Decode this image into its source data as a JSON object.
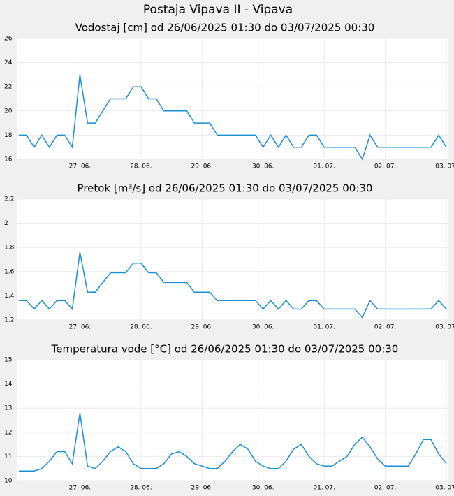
{
  "title": "Postaja Vipava II - Vipava",
  "chart_data": [
    {
      "type": "line",
      "title": "Vodostaj [cm] od 26/06/2025 01:30 do 03/07/2025 00:30",
      "categories": [
        null,
        null,
        null,
        null,
        null,
        null,
        null,
        null,
        "27. 06.",
        null,
        null,
        null,
        null,
        null,
        null,
        null,
        "28. 06.",
        null,
        null,
        null,
        null,
        null,
        null,
        null,
        "29. 06.",
        null,
        null,
        null,
        null,
        null,
        null,
        null,
        "30. 06.",
        null,
        null,
        null,
        null,
        null,
        null,
        null,
        "01. 07.",
        null,
        null,
        null,
        null,
        null,
        null,
        null,
        "02. 07.",
        null,
        null,
        null,
        null,
        null,
        null,
        null,
        "03. 07."
      ],
      "values": [
        18,
        18,
        17,
        18,
        17,
        18,
        18,
        17,
        23,
        19,
        19,
        20,
        21,
        21,
        21,
        22,
        22,
        21,
        21,
        20,
        20,
        20,
        20,
        19,
        19,
        19,
        18,
        18,
        18,
        18,
        18,
        18,
        17,
        18,
        17,
        18,
        17,
        17,
        18,
        18,
        17,
        17,
        17,
        17,
        17,
        16,
        18,
        17,
        17,
        17,
        17,
        17,
        17,
        17,
        17,
        18,
        17
      ],
      "color": "#1a8fd6",
      "ylim": [
        16,
        26
      ],
      "yticks": [
        16,
        18,
        20,
        22,
        24,
        26
      ],
      "grid": true
    },
    {
      "type": "line",
      "title": "Pretok [m³/s] od 26/06/2025 01:30 do 03/07/2025 00:30",
      "categories": [
        null,
        null,
        null,
        null,
        null,
        null,
        null,
        null,
        "27. 06.",
        null,
        null,
        null,
        null,
        null,
        null,
        null,
        "28. 06.",
        null,
        null,
        null,
        null,
        null,
        null,
        null,
        "29. 06.",
        null,
        null,
        null,
        null,
        null,
        null,
        null,
        "30. 06.",
        null,
        null,
        null,
        null,
        null,
        null,
        null,
        "01. 07.",
        null,
        null,
        null,
        null,
        null,
        null,
        null,
        "02. 07.",
        null,
        null,
        null,
        null,
        null,
        null,
        null,
        "03. 07."
      ],
      "values": [
        1.36,
        1.36,
        1.29,
        1.36,
        1.29,
        1.36,
        1.36,
        1.29,
        1.76,
        1.43,
        1.43,
        1.51,
        1.59,
        1.59,
        1.59,
        1.67,
        1.67,
        1.59,
        1.59,
        1.51,
        1.51,
        1.51,
        1.51,
        1.43,
        1.43,
        1.43,
        1.36,
        1.36,
        1.36,
        1.36,
        1.36,
        1.36,
        1.29,
        1.36,
        1.29,
        1.36,
        1.29,
        1.29,
        1.36,
        1.36,
        1.29,
        1.29,
        1.29,
        1.29,
        1.29,
        1.22,
        1.36,
        1.29,
        1.29,
        1.29,
        1.29,
        1.29,
        1.29,
        1.29,
        1.29,
        1.36,
        1.29
      ],
      "color": "#1a8fd6",
      "ylim": [
        1.2,
        2.2
      ],
      "yticks": [
        1.2,
        1.4,
        1.6,
        1.8,
        2,
        2.2
      ],
      "grid": true
    },
    {
      "type": "line",
      "title": "Temperatura vode [°C] od 26/06/2025 01:30 do 03/07/2025 00:30",
      "categories": [
        null,
        null,
        null,
        null,
        null,
        null,
        null,
        null,
        "27. 06.",
        null,
        null,
        null,
        null,
        null,
        null,
        null,
        "28. 06.",
        null,
        null,
        null,
        null,
        null,
        null,
        null,
        "29. 06.",
        null,
        null,
        null,
        null,
        null,
        null,
        null,
        "30. 06.",
        null,
        null,
        null,
        null,
        null,
        null,
        null,
        "01. 07.",
        null,
        null,
        null,
        null,
        null,
        null,
        null,
        "02. 07.",
        null,
        null,
        null,
        null,
        null,
        null,
        null,
        "03. 07."
      ],
      "values": [
        10.4,
        10.4,
        10.4,
        10.5,
        10.8,
        11.2,
        11.2,
        10.7,
        12.8,
        10.6,
        10.5,
        10.8,
        11.2,
        11.4,
        11.2,
        10.7,
        10.5,
        10.5,
        10.5,
        10.7,
        11.1,
        11.2,
        11.0,
        10.7,
        10.6,
        10.5,
        10.5,
        10.8,
        11.2,
        11.5,
        11.3,
        10.8,
        10.6,
        10.5,
        10.5,
        10.8,
        11.3,
        11.5,
        11.0,
        10.7,
        10.6,
        10.6,
        10.8,
        11.0,
        11.5,
        11.8,
        11.4,
        10.9,
        10.6,
        10.6,
        10.6,
        10.6,
        11.1,
        11.7,
        11.7,
        11.1,
        10.7
      ],
      "color": "#1a8fd6",
      "ylim": [
        10,
        15
      ],
      "yticks": [
        10,
        11,
        12,
        13,
        14,
        15
      ],
      "grid": true
    }
  ]
}
